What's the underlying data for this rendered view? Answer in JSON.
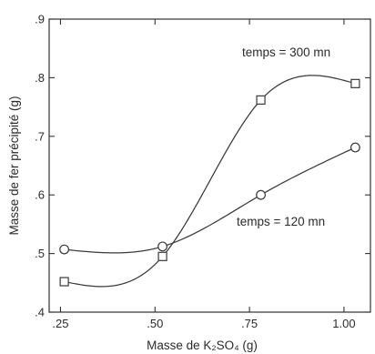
{
  "chart_data": {
    "type": "line",
    "xlabel": "Masse de K₂SO₄ (g)",
    "ylabel": "Masse de fer précipité (g)",
    "xlim": [
      0.22,
      1.07
    ],
    "ylim": [
      0.4,
      0.9
    ],
    "x_ticks": [
      0.25,
      0.5,
      0.75,
      1.0
    ],
    "x_tick_labels": [
      ".25",
      ".50",
      ".75",
      "1.00"
    ],
    "y_ticks": [
      0.4,
      0.5,
      0.6,
      0.7,
      0.8,
      0.9
    ],
    "y_tick_labels": [
      ".4",
      ".5",
      ".6",
      ".7",
      ".8",
      ".9"
    ],
    "grid": false,
    "series": [
      {
        "name": "temps = 300 mn",
        "marker": "square",
        "x": [
          0.26,
          0.52,
          0.78,
          1.03
        ],
        "y": [
          0.452,
          0.495,
          0.762,
          0.79
        ]
      },
      {
        "name": "temps = 120 mn",
        "marker": "circle",
        "x": [
          0.26,
          0.52,
          0.78,
          1.03
        ],
        "y": [
          0.507,
          0.512,
          0.6,
          0.681
        ]
      }
    ],
    "annotations": [
      "temps = 300 mn",
      "temps = 120 mn"
    ]
  }
}
